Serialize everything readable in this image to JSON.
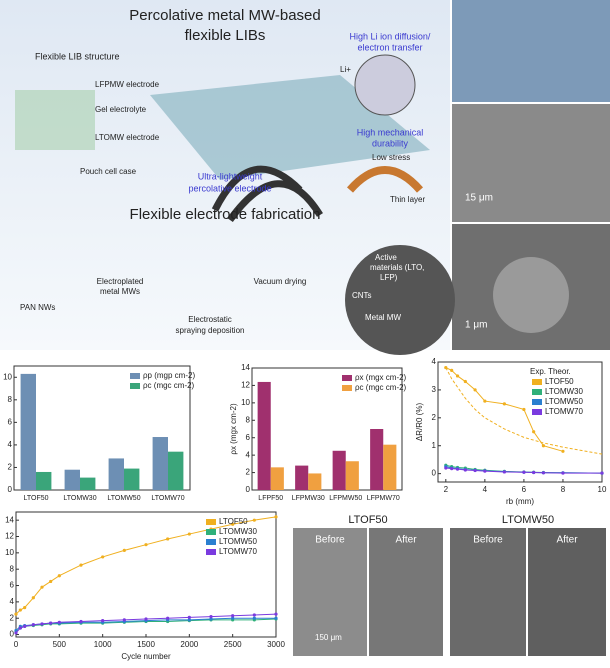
{
  "schematic": {
    "title_line1": "Percolative metal MW-based",
    "title_line2": "flexible LIBs",
    "structure": "Flexible LIB structure",
    "lfp": "LFPMW electrode",
    "gel": "Gel electrolyte",
    "lto": "LTOMW electrode",
    "pouch": "Pouch cell case",
    "diffusion1": "High Li ion diffusion/",
    "diffusion2": "electron transfer",
    "li": "Li+",
    "durability1": "High mechanical",
    "durability2": "durability",
    "low_stress": "Low stress",
    "thin_layer": "Thin layer",
    "lightweight1": "Ultra-lightweight",
    "lightweight2": "percolative electrode",
    "fabrication": "Flexible electrode fabrication",
    "pan": "PAN NWs",
    "electroplated1": "Electroplated",
    "electroplated2": "metal MWs",
    "spraying1": "Electrostatic",
    "spraying2": "spraying deposition",
    "vacuum": "Vacuum drying",
    "active1": "Active",
    "active2": "materials (LTO,",
    "active3": "LFP)",
    "cnts": "CNTs",
    "metal_mw": "Metal MW"
  },
  "photos": {
    "scale_mid": "15 μm",
    "scale_bottom": "1 μm"
  },
  "sem_comparison": {
    "left_title": "LTOF50",
    "right_title": "LTOMW50",
    "before_left": "Before",
    "after_left": "After",
    "before_right": "Before",
    "after_right": "After",
    "scale": "150 μm"
  },
  "chart_data": [
    {
      "type": "bar",
      "categories": [
        "LTOF50",
        "LTOMW30",
        "LTOMW50",
        "LTOMW70"
      ],
      "ylim": [
        0,
        11
      ],
      "yticks": [
        0,
        2,
        4,
        6,
        8,
        10
      ],
      "series": [
        {
          "name": "ρp (mgp cm-2)",
          "color": "#6d8fb4",
          "values": [
            10.3,
            1.8,
            2.8,
            4.7
          ]
        },
        {
          "name": "ρc (mgc cm-2)",
          "color": "#3aa57a",
          "values": [
            1.6,
            1.1,
            1.9,
            3.4
          ]
        }
      ]
    },
    {
      "type": "bar",
      "y_label": "ρx (mgx cm-2)",
      "categories": [
        "LFPF50",
        "LFPMW30",
        "LFPMW50",
        "LFPMW70"
      ],
      "ylim": [
        0,
        14
      ],
      "yticks": [
        0,
        2,
        4,
        6,
        8,
        10,
        12,
        14
      ],
      "series": [
        {
          "name": "ρx (mgx cm-2)",
          "color": "#a0306e",
          "values": [
            12.4,
            2.8,
            4.5,
            7.0
          ]
        },
        {
          "name": "ρc (mgc cm-2)",
          "color": "#f0a040",
          "values": [
            2.6,
            1.9,
            3.3,
            5.2
          ]
        }
      ]
    },
    {
      "type": "line",
      "x_label": "rb (mm)",
      "y_label": "ΔR/R0 (%)",
      "legend_title": "Exp. Theor.",
      "xlim": [
        1.6,
        10
      ],
      "xticks": [
        2,
        4,
        6,
        8,
        10
      ],
      "ylim": [
        -0.3,
        4
      ],
      "yticks": [
        0,
        1,
        2,
        3,
        4
      ],
      "x": [
        2.0,
        2.3,
        2.6,
        3.0,
        3.5,
        4.0,
        5.0,
        6.0,
        6.5,
        7.0,
        8.0,
        10.0
      ],
      "series": [
        {
          "name": "LTOF50",
          "color": "#f0b020",
          "values": [
            3.8,
            3.7,
            3.5,
            3.3,
            3.0,
            2.6,
            2.5,
            2.3,
            1.5,
            1.0,
            0.8,
            null
          ],
          "theory_values": [
            3.8,
            3.4,
            3.1,
            2.7,
            2.3,
            2.0,
            1.6,
            1.3,
            1.2,
            1.1,
            0.95,
            0.7
          ]
        },
        {
          "name": "LTOMW30",
          "color": "#2fb07a",
          "values": [
            0.3,
            0.25,
            0.22,
            0.2,
            0.15,
            0.12,
            0.08,
            0.06,
            0.05,
            0.04,
            0.03,
            0.02
          ]
        },
        {
          "name": "LTOMW50",
          "color": "#2a7fd0",
          "values": [
            0.25,
            0.2,
            0.18,
            0.15,
            0.12,
            0.1,
            0.07,
            0.05,
            0.04,
            0.03,
            0.03,
            0.02
          ]
        },
        {
          "name": "LTOMW70",
          "color": "#7a3adf",
          "values": [
            0.2,
            0.18,
            0.16,
            0.13,
            0.11,
            0.09,
            0.06,
            0.05,
            0.04,
            0.03,
            0.02,
            0.02
          ]
        }
      ]
    },
    {
      "type": "line",
      "x_label": "Cycle number",
      "xlim": [
        0,
        3000
      ],
      "xticks": [
        0,
        500,
        1000,
        1500,
        2000,
        2500,
        3000
      ],
      "ylim": [
        -0.3,
        15
      ],
      "yticks": [
        0,
        2,
        4,
        6,
        8,
        10,
        12,
        14
      ],
      "x": [
        0,
        50,
        100,
        200,
        300,
        400,
        500,
        750,
        1000,
        1250,
        1500,
        1750,
        2000,
        2250,
        2500,
        2750,
        3000
      ],
      "series": [
        {
          "name": "LTOF50",
          "color": "#f0b020",
          "values": [
            2.5,
            3.0,
            3.3,
            4.5,
            5.8,
            6.5,
            7.2,
            8.5,
            9.5,
            10.3,
            11.0,
            11.7,
            12.3,
            12.9,
            13.5,
            14.0,
            14.4
          ]
        },
        {
          "name": "LTOMW30",
          "color": "#2fb07a",
          "values": [
            0.3,
            0.8,
            1.0,
            1.1,
            1.2,
            1.3,
            1.3,
            1.4,
            1.4,
            1.5,
            1.6,
            1.6,
            1.7,
            1.8,
            1.8,
            1.8,
            1.9
          ]
        },
        {
          "name": "LTOMW50",
          "color": "#2a7fd0",
          "values": [
            0.5,
            1.0,
            1.1,
            1.2,
            1.3,
            1.4,
            1.4,
            1.5,
            1.5,
            1.6,
            1.7,
            1.8,
            1.8,
            1.9,
            2.0,
            2.0,
            2.0
          ]
        },
        {
          "name": "LTOMW70",
          "color": "#7a3adf",
          "values": [
            0.2,
            0.8,
            1.0,
            1.2,
            1.3,
            1.4,
            1.5,
            1.6,
            1.7,
            1.8,
            1.9,
            2.0,
            2.1,
            2.2,
            2.3,
            2.4,
            2.5
          ]
        }
      ]
    }
  ]
}
